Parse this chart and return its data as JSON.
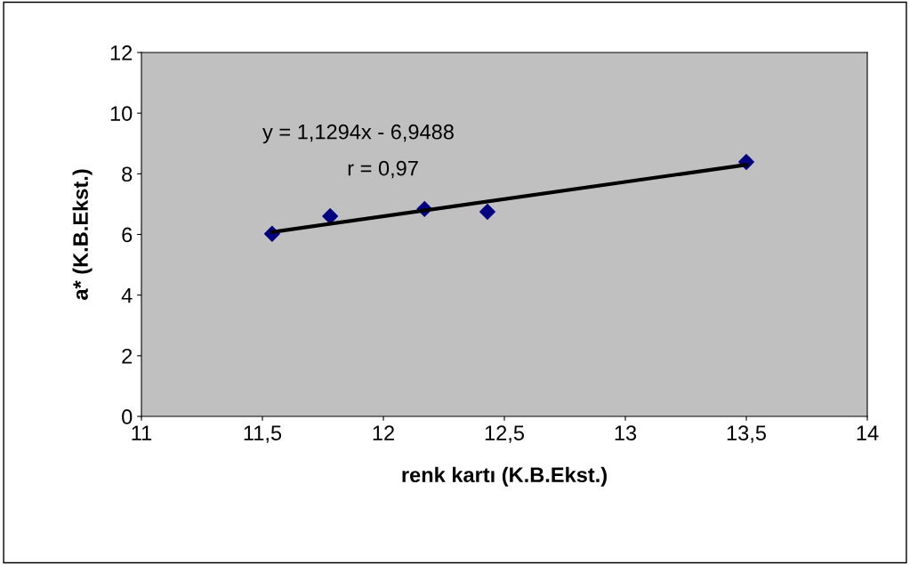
{
  "chart_data": {
    "type": "scatter",
    "xlabel": "renk kartı (K.B.Ekst.)",
    "ylabel": "a* (K.B.Ekst.)",
    "series": [
      {
        "color": "#000080",
        "marker": "diamond",
        "x": [
          11.54,
          11.78,
          12.17,
          12.43,
          13.5
        ],
        "values": [
          6.02,
          6.6,
          6.84,
          6.75,
          8.39
        ]
      },
      {
        "type": "line",
        "color": "#000000",
        "marker": "none",
        "x": [
          11.54,
          13.5
        ],
        "values": [
          6.08,
          8.3
        ]
      }
    ],
    "annotations": [
      "y = 1,1294x - 6,9488",
      "r = 0,97"
    ],
    "xlim": [
      11,
      14
    ],
    "xticks": [
      11,
      {
        "value": 11.5,
        "label": "11,5"
      },
      12,
      {
        "value": 12.5,
        "label": "12,5"
      },
      13,
      {
        "value": 13.5,
        "label": "13,5"
      },
      14
    ],
    "ylim": [
      0,
      12
    ],
    "yticks": [
      0,
      2,
      4,
      6,
      8,
      10,
      12
    ],
    "grid": false,
    "legend": false
  }
}
